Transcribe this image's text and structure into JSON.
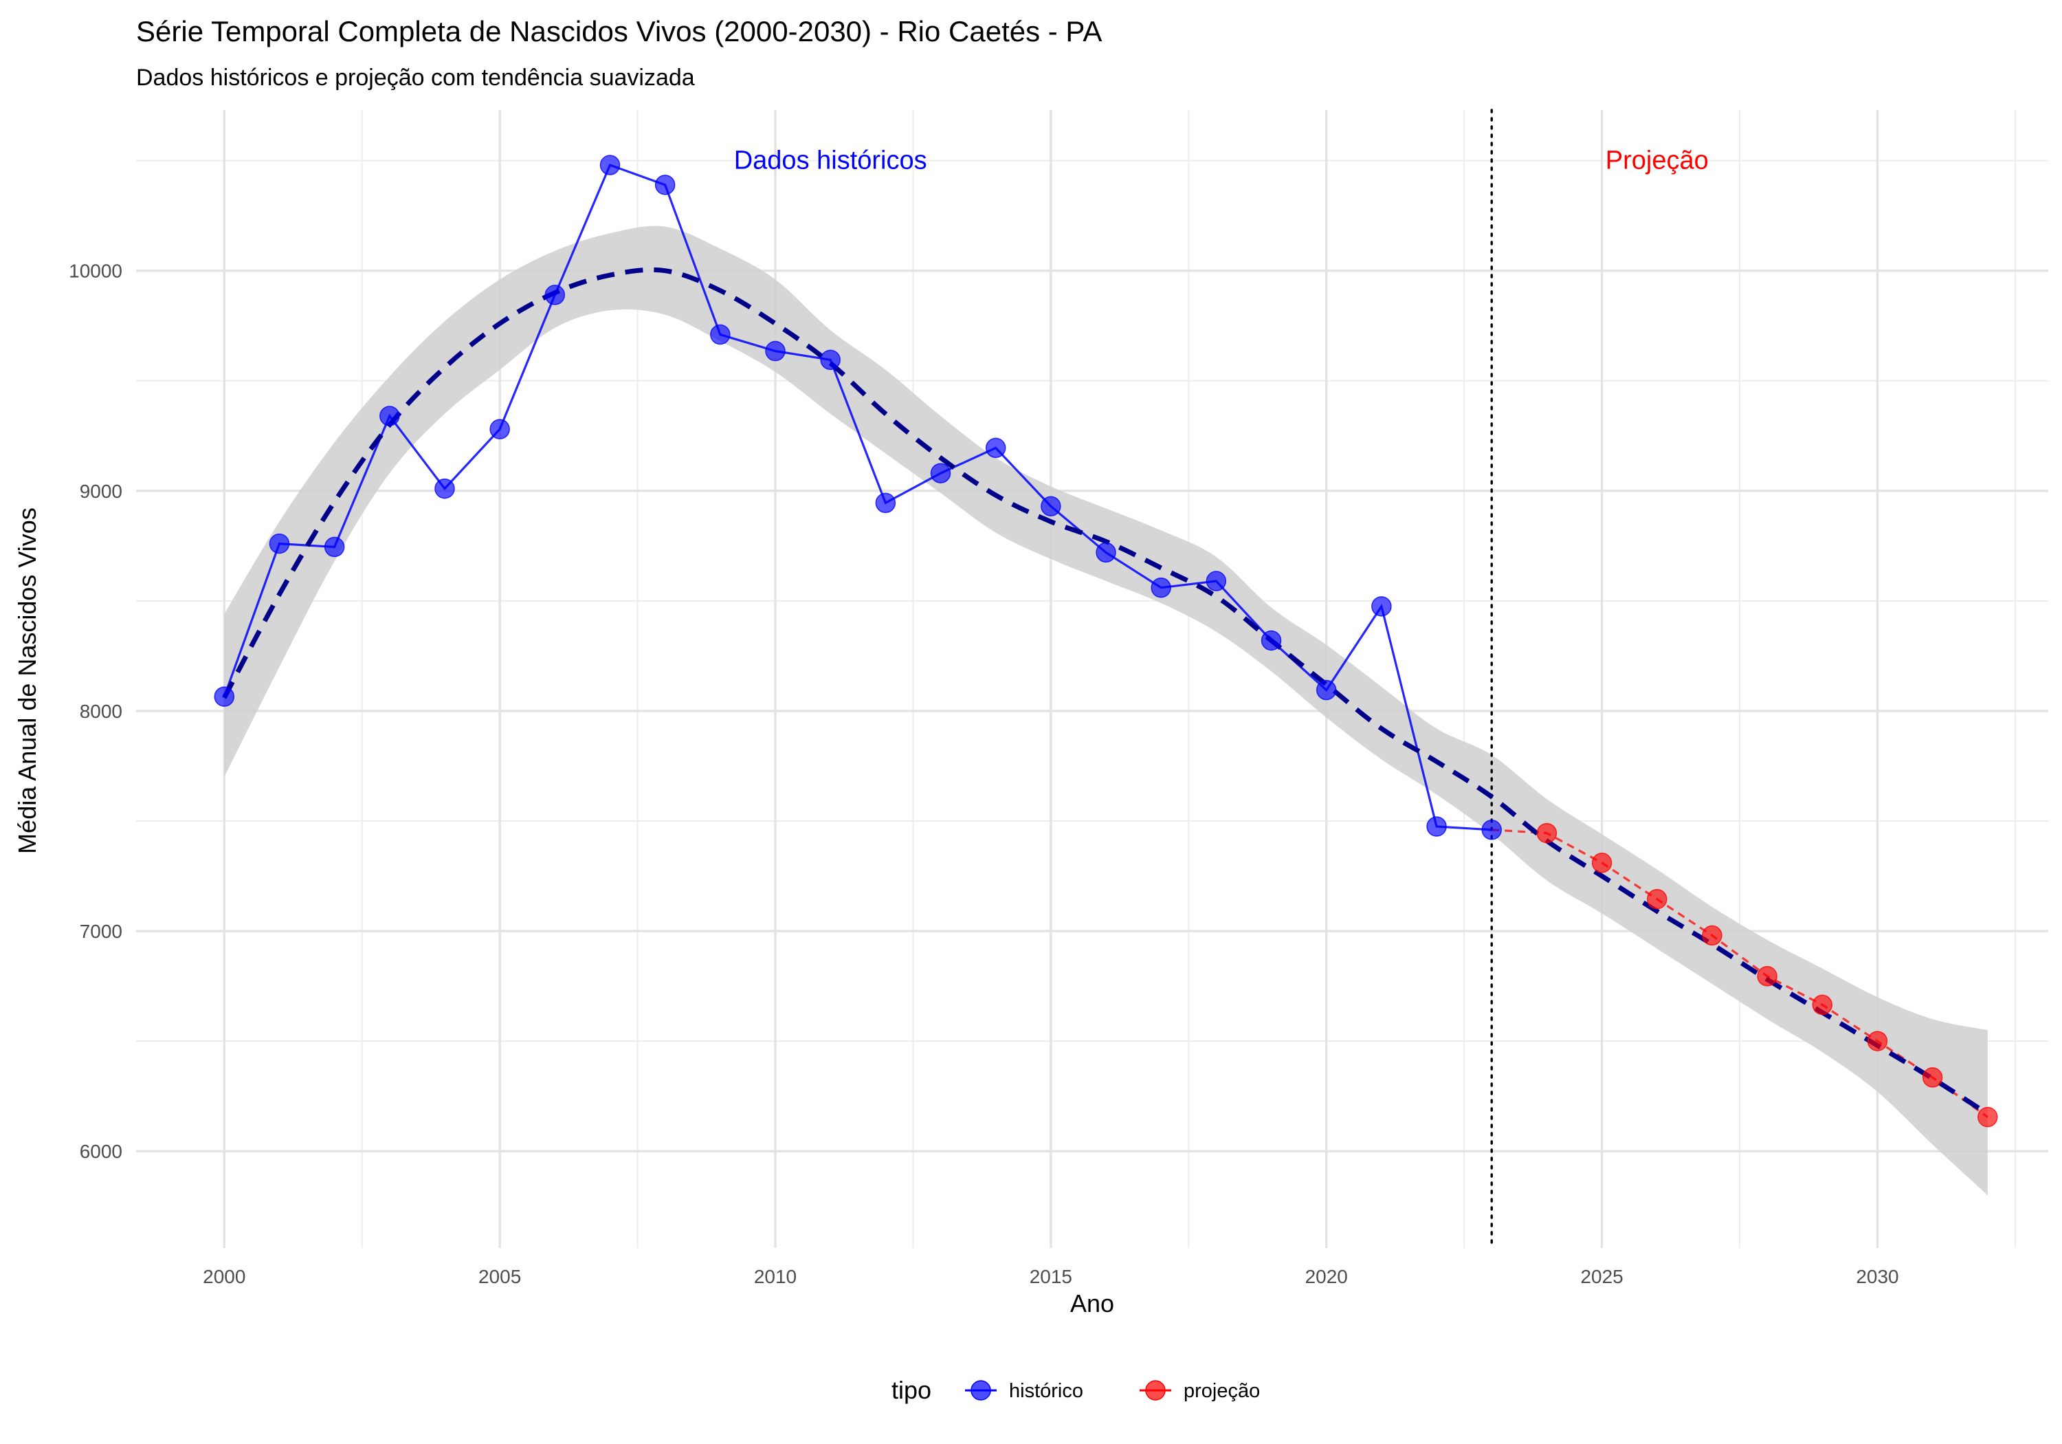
{
  "chart_data": {
    "type": "line",
    "title": "Série Temporal Completa de Nascidos Vivos (2000-2030) -  Rio Caetés - PA",
    "subtitle": "Dados históricos e projeção com tendência suavizada",
    "xlabel": "Ano",
    "ylabel": "Média Anual de Nascidos Vivos",
    "xlim": [
      1998.4,
      2033.1
    ],
    "ylim": [
      5560,
      10730
    ],
    "x_ticks": [
      2000,
      2005,
      2010,
      2015,
      2020,
      2025,
      2030
    ],
    "x_tick_labels": [
      "2000",
      "2005",
      "2010",
      "2015",
      "2020",
      "2025",
      "2030"
    ],
    "y_ticks": [
      6000,
      7000,
      8000,
      9000,
      10000
    ],
    "y_tick_labels": [
      "6000",
      "7000",
      "8000",
      "9000",
      "10000"
    ],
    "grid": true,
    "legend": {
      "title": "tipo",
      "position": "bottom",
      "entries": [
        {
          "label": "histórico",
          "color": "#0000ff"
        },
        {
          "label": "projeção",
          "color": "#ff0000"
        }
      ]
    },
    "divider_x": 2023,
    "annotations": [
      {
        "text": "Dados históricos",
        "x": 2011,
        "y": 10500,
        "color": "#0000ff"
      },
      {
        "text": "Projeção",
        "x": 2026,
        "y": 10500,
        "color": "#ff0000"
      }
    ],
    "series": [
      {
        "name": "histórico",
        "color": "#0000ff",
        "x": [
          2000,
          2001,
          2002,
          2003,
          2004,
          2005,
          2006,
          2007,
          2008,
          2009,
          2010,
          2011,
          2012,
          2013,
          2014,
          2015,
          2016,
          2017,
          2018,
          2019,
          2020,
          2021,
          2022,
          2023
        ],
        "y": [
          8065,
          8760,
          8745,
          9340,
          9010,
          9280,
          9890,
          10480,
          10390,
          9710,
          9635,
          9595,
          8945,
          9080,
          9195,
          8930,
          8720,
          8560,
          8590,
          8320,
          8095,
          8475,
          7475,
          7460
        ]
      },
      {
        "name": "projeção",
        "color": "#ff0000",
        "x": [
          2023,
          2024,
          2025,
          2026,
          2027,
          2028,
          2029,
          2030,
          2031,
          2032
        ],
        "y": [
          7460,
          7445,
          7310,
          7145,
          6980,
          6795,
          6665,
          6500,
          6335,
          6155
        ]
      }
    ],
    "trend": {
      "color": "#00008b",
      "x": [
        2000,
        2001,
        2002,
        2003,
        2004,
        2005,
        2006,
        2007,
        2008,
        2009,
        2010,
        2011,
        2012,
        2013,
        2014,
        2015,
        2016,
        2017,
        2018,
        2019,
        2020,
        2021,
        2022,
        2023,
        2024,
        2025,
        2026,
        2027,
        2028,
        2029,
        2030,
        2031,
        2032
      ],
      "y": [
        8060,
        8530,
        8950,
        9300,
        9560,
        9760,
        9900,
        9980,
        10000,
        9910,
        9760,
        9580,
        9350,
        9150,
        8980,
        8860,
        8770,
        8650,
        8520,
        8320,
        8120,
        7920,
        7770,
        7610,
        7410,
        7250,
        7090,
        6940,
        6780,
        6630,
        6480,
        6330,
        6170
      ],
      "ci_lower": [
        7700,
        8200,
        8680,
        9080,
        9350,
        9550,
        9740,
        9820,
        9800,
        9680,
        9540,
        9350,
        9170,
        8990,
        8810,
        8690,
        8590,
        8490,
        8360,
        8180,
        7970,
        7780,
        7620,
        7440,
        7230,
        7080,
        6920,
        6760,
        6600,
        6450,
        6270,
        6030,
        5800
      ],
      "ci_upper": [
        8440,
        8860,
        9220,
        9520,
        9770,
        9960,
        10090,
        10170,
        10200,
        10100,
        9960,
        9730,
        9550,
        9340,
        9150,
        9020,
        8920,
        8820,
        8700,
        8470,
        8300,
        8110,
        7920,
        7800,
        7600,
        7440,
        7280,
        7110,
        6960,
        6830,
        6700,
        6600,
        6550
      ]
    }
  }
}
